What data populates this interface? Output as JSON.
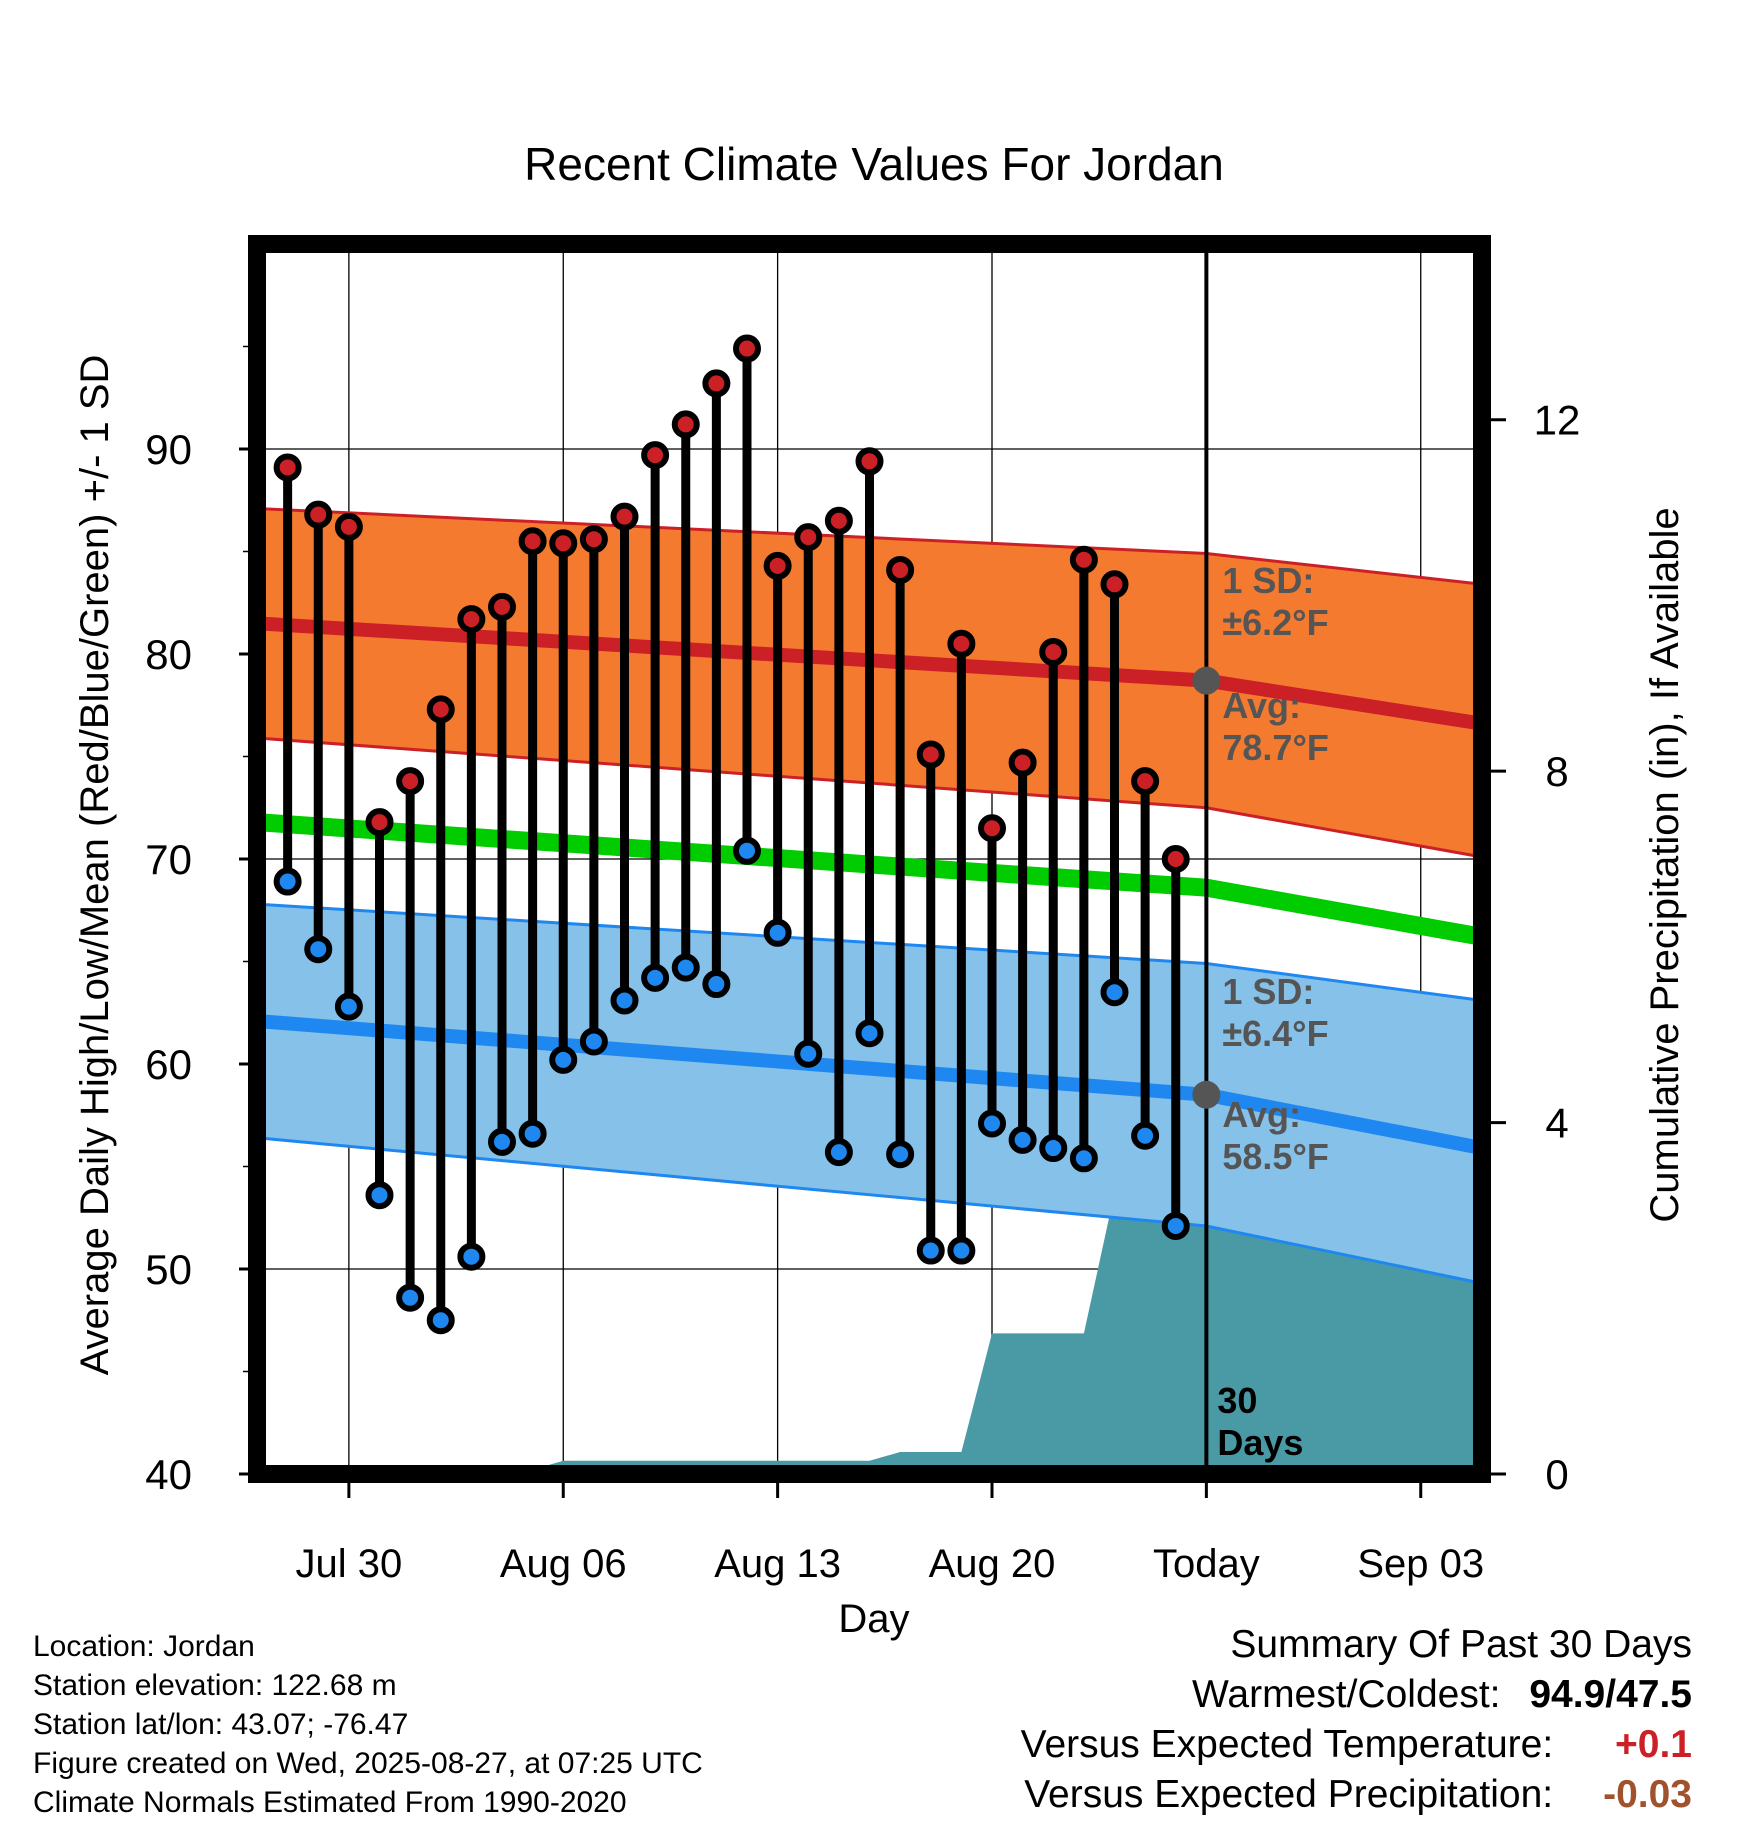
{
  "chart_data": {
    "type": "line",
    "title": "Recent Climate Values For Jordan",
    "xlabel": "Day",
    "ylabel": "Average Daily High/Low/Mean (Red/Blue/Green) +/- 1 SD",
    "ylabel_right": "Cumulative Precipitation (in), If Available",
    "x_tick_labels": [
      "Jul 30",
      "Aug 06",
      "Aug 13",
      "Aug 20",
      "Today",
      "Sep 03"
    ],
    "x_tick_dates": [
      "2025-07-30",
      "2025-08-06",
      "2025-08-13",
      "2025-08-20",
      "2025-08-27",
      "2025-09-03"
    ],
    "x_range": [
      "2025-07-27",
      "2025-09-05"
    ],
    "ylim": [
      40,
      100
    ],
    "y_ticks": [
      40,
      50,
      60,
      70,
      80,
      90
    ],
    "ylim_right": [
      0,
      14
    ],
    "y_ticks_right": [
      0,
      4,
      8,
      12
    ],
    "today": "2025-08-27",
    "today_label": "30 Days",
    "grid": true,
    "colors": {
      "high": "#cc2027",
      "high_band": "#f47a30",
      "low": "#1e88f0",
      "low_band": "#85c1e8",
      "mean": "#00cc00",
      "precip": "#4a9aa5",
      "avg_marker": "#555555",
      "annotation": "#555555",
      "temp_anomaly": "#cc2027",
      "precip_anomaly": "#a0522d"
    },
    "normal_high": {
      "x": [
        "2025-07-27",
        "2025-08-27",
        "2025-09-05"
      ],
      "y": [
        81.5,
        78.7,
        76.6
      ]
    },
    "normal_high_upper": {
      "x": [
        "2025-07-27",
        "2025-08-27",
        "2025-09-05"
      ],
      "y": [
        87.1,
        84.9,
        83.4
      ]
    },
    "normal_high_lower": {
      "x": [
        "2025-07-27",
        "2025-08-27",
        "2025-09-05"
      ],
      "y": [
        75.9,
        72.5,
        70.1
      ]
    },
    "normal_mean": {
      "x": [
        "2025-07-27",
        "2025-08-27",
        "2025-09-05"
      ],
      "y": [
        71.8,
        68.6,
        66.2
      ]
    },
    "normal_low": {
      "x": [
        "2025-07-27",
        "2025-08-27",
        "2025-09-05"
      ],
      "y": [
        62.1,
        58.5,
        55.9
      ]
    },
    "normal_low_upper": {
      "x": [
        "2025-07-27",
        "2025-08-27",
        "2025-09-05"
      ],
      "y": [
        67.8,
        64.9,
        63.1
      ]
    },
    "normal_low_lower": {
      "x": [
        "2025-07-27",
        "2025-08-27",
        "2025-09-05"
      ],
      "y": [
        56.4,
        52.1,
        49.3
      ]
    },
    "series": [
      {
        "name": "High",
        "x": [
          "2025-07-28",
          "2025-07-29",
          "2025-07-30",
          "2025-07-31",
          "2025-08-01",
          "2025-08-02",
          "2025-08-03",
          "2025-08-04",
          "2025-08-05",
          "2025-08-06",
          "2025-08-07",
          "2025-08-08",
          "2025-08-09",
          "2025-08-10",
          "2025-08-11",
          "2025-08-12",
          "2025-08-13",
          "2025-08-14",
          "2025-08-15",
          "2025-08-16",
          "2025-08-17",
          "2025-08-18",
          "2025-08-19",
          "2025-08-20",
          "2025-08-21",
          "2025-08-22",
          "2025-08-23",
          "2025-08-24",
          "2025-08-25",
          "2025-08-26"
        ],
        "values": [
          89.1,
          86.8,
          86.2,
          71.8,
          73.8,
          77.3,
          81.7,
          82.3,
          85.5,
          85.4,
          85.6,
          86.7,
          89.7,
          91.2,
          93.2,
          94.9,
          84.3,
          85.7,
          86.5,
          89.4,
          84.1,
          75.1,
          80.5,
          71.5,
          74.7,
          80.1,
          84.6,
          83.4,
          73.8,
          70.0
        ]
      },
      {
        "name": "Low",
        "x": [
          "2025-07-28",
          "2025-07-29",
          "2025-07-30",
          "2025-07-31",
          "2025-08-01",
          "2025-08-02",
          "2025-08-03",
          "2025-08-04",
          "2025-08-05",
          "2025-08-06",
          "2025-08-07",
          "2025-08-08",
          "2025-08-09",
          "2025-08-10",
          "2025-08-11",
          "2025-08-12",
          "2025-08-13",
          "2025-08-14",
          "2025-08-15",
          "2025-08-16",
          "2025-08-17",
          "2025-08-18",
          "2025-08-19",
          "2025-08-20",
          "2025-08-21",
          "2025-08-22",
          "2025-08-23",
          "2025-08-24",
          "2025-08-25",
          "2025-08-26"
        ],
        "values": [
          68.9,
          65.6,
          62.8,
          53.6,
          48.6,
          47.5,
          50.6,
          56.2,
          56.6,
          60.2,
          61.1,
          63.1,
          64.2,
          64.7,
          63.9,
          70.4,
          66.4,
          60.5,
          55.7,
          61.5,
          55.6,
          50.9,
          50.9,
          57.1,
          56.3,
          55.9,
          55.4,
          63.5,
          56.5,
          52.1
        ]
      }
    ],
    "precip": {
      "x": [
        "2025-07-28",
        "2025-07-29",
        "2025-07-30",
        "2025-07-31",
        "2025-08-01",
        "2025-08-02",
        "2025-08-03",
        "2025-08-04",
        "2025-08-05",
        "2025-08-06",
        "2025-08-07",
        "2025-08-08",
        "2025-08-09",
        "2025-08-10",
        "2025-08-11",
        "2025-08-12",
        "2025-08-13",
        "2025-08-14",
        "2025-08-15",
        "2025-08-16",
        "2025-08-17",
        "2025-08-18",
        "2025-08-19",
        "2025-08-20",
        "2025-08-21",
        "2025-08-22",
        "2025-08-23",
        "2025-08-24",
        "2025-08-25",
        "2025-08-26",
        "2025-08-27",
        "2025-09-05"
      ],
      "values": [
        0,
        0,
        0,
        0.05,
        0.05,
        0.05,
        0.05,
        0.05,
        0.05,
        0.15,
        0.15,
        0.15,
        0.15,
        0.15,
        0.15,
        0.15,
        0.15,
        0.15,
        0.15,
        0.15,
        0.25,
        0.25,
        0.25,
        1.6,
        1.6,
        1.6,
        1.6,
        3.2,
        3.45,
        3.55,
        3.55,
        3.55
      ]
    },
    "annotations": {
      "high_sd": "1 SD:\n±6.2°F",
      "high_avg": "Avg:\n78.7°F",
      "low_sd": "1 SD:\n±6.4°F",
      "low_avg": "Avg:\n58.5°F"
    }
  },
  "footer": {
    "location": "Location: Jordan",
    "elevation": "Station elevation: 122.68 m",
    "latlon": "Station lat/lon: 43.07; -76.47",
    "created": "Figure created on Wed, 2025-08-27, at 07:25 UTC",
    "normals": "Climate Normals Estimated From 1990-2020"
  },
  "summary": {
    "title": "Summary Of Past 30 Days",
    "warmest_coldest_label": "Warmest/Coldest:",
    "warmest_coldest_value": "94.9/47.5",
    "temp_label": "Versus Expected Temperature:",
    "temp_value": "+0.1",
    "precip_label": "Versus Expected Precipitation:",
    "precip_value": "-0.03"
  }
}
